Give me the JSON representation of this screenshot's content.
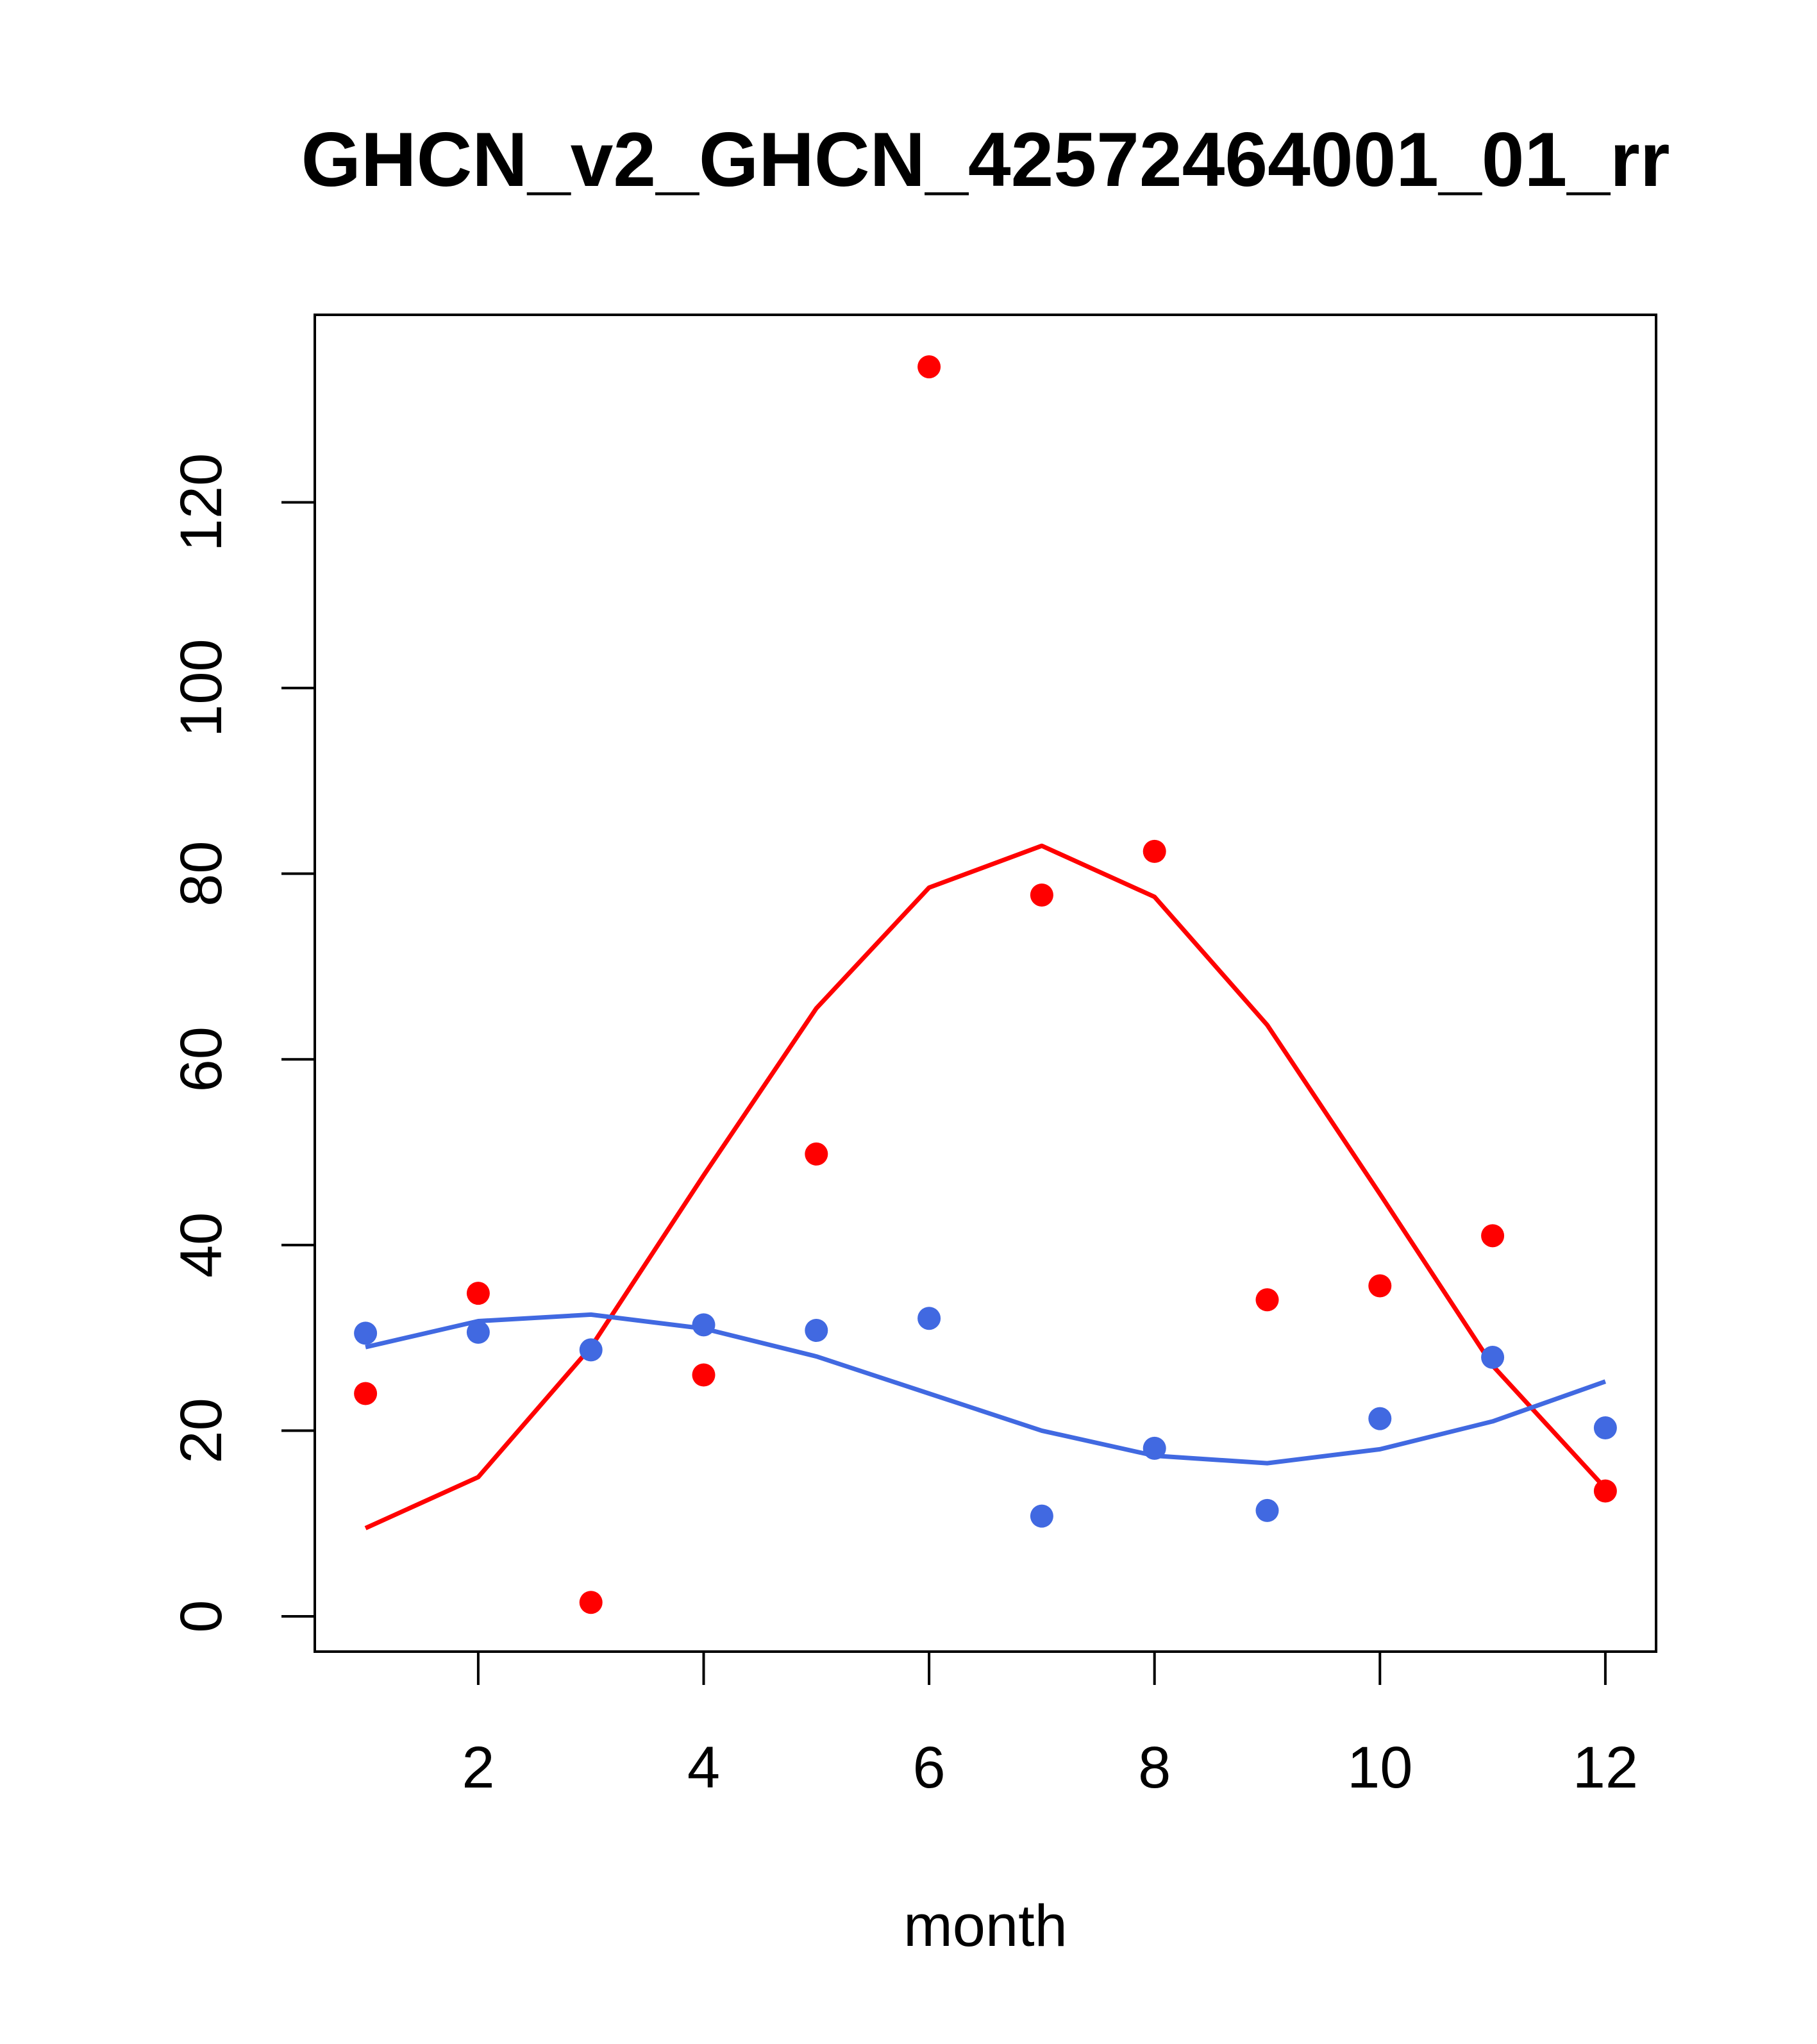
{
  "chart_data": {
    "type": "scatter",
    "title": "GHCN_v2_GHCN_42572464001_01_rr",
    "xlabel": "month",
    "ylabel": "",
    "xlim": [
      0.55,
      12.45
    ],
    "ylim": [
      -3.8,
      140.2
    ],
    "x_ticks": [
      2,
      4,
      6,
      8,
      10,
      12
    ],
    "y_ticks": [
      0,
      20,
      40,
      60,
      80,
      100,
      120
    ],
    "grid": false,
    "legend": "none",
    "series": [
      {
        "kind": "points",
        "color": "#ff0000",
        "x": [
          1,
          2,
          3,
          4,
          5,
          6,
          7,
          8,
          9,
          10,
          11,
          12
        ],
        "y": [
          24.0,
          34.8,
          1.5,
          26.0,
          49.8,
          134.6,
          77.7,
          82.4,
          34.1,
          35.6,
          41.0,
          13.5
        ]
      },
      {
        "kind": "line",
        "color": "#ff0000",
        "x": [
          1,
          2,
          3,
          4,
          5,
          6,
          7,
          8,
          9,
          10,
          11,
          12
        ],
        "y": [
          9.5,
          15.0,
          29.0,
          47.5,
          65.5,
          78.5,
          83.0,
          77.5,
          63.7,
          45.5,
          27.0,
          13.8
        ]
      },
      {
        "kind": "points",
        "color": "#4169e1",
        "x": [
          1,
          2,
          3,
          4,
          5,
          6,
          7,
          8,
          9,
          10,
          11,
          12
        ],
        "y": [
          30.5,
          30.6,
          28.7,
          31.4,
          30.8,
          32.1,
          10.8,
          18.1,
          11.4,
          21.3,
          27.9,
          20.3
        ]
      },
      {
        "kind": "line",
        "color": "#4169e1",
        "x": [
          1,
          2,
          3,
          4,
          5,
          6,
          7,
          8,
          9,
          10,
          11,
          12
        ],
        "y": [
          29.0,
          31.8,
          32.5,
          31.0,
          28.0,
          24.0,
          20.0,
          17.3,
          16.5,
          18.0,
          21.0,
          25.3
        ]
      }
    ]
  }
}
